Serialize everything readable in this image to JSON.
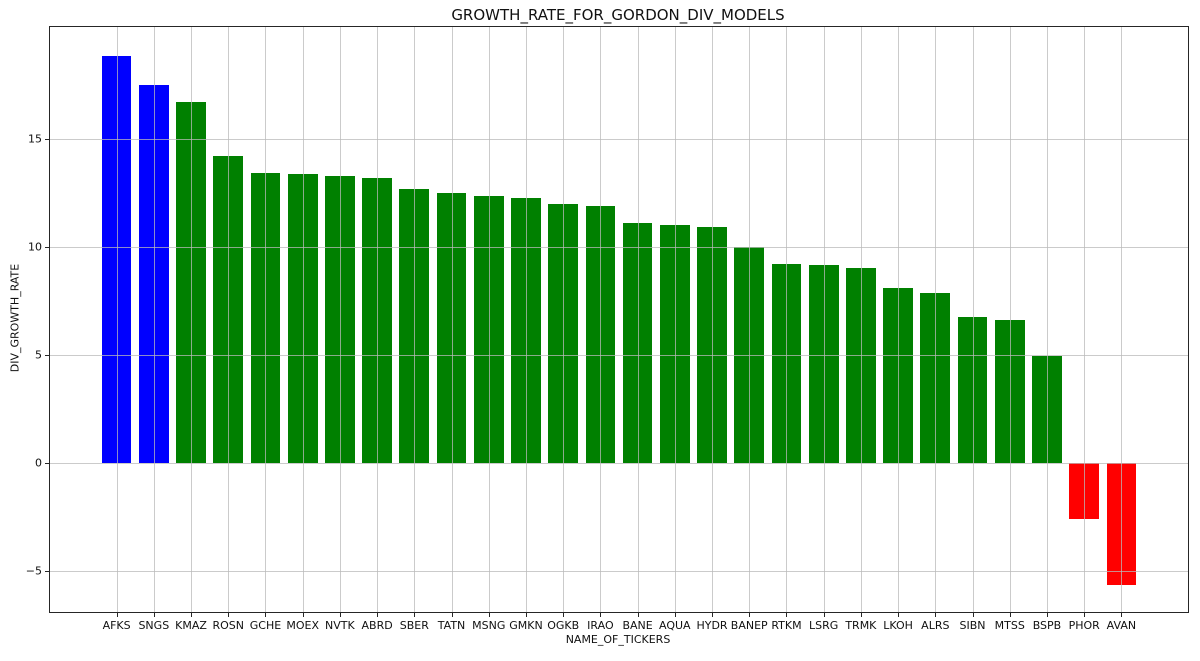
{
  "chart_data": {
    "type": "bar",
    "title": "GROWTH_RATE_FOR_GORDON_DIV_MODELS",
    "xlabel": "NAME_OF_TICKERS",
    "ylabel": "DIV_GROWTH_RATE",
    "categories": [
      "AFKS",
      "SNGS",
      "KMAZ",
      "ROSN",
      "GCHE",
      "MOEX",
      "NVTK",
      "ABRD",
      "SBER",
      "TATN",
      "MSNG",
      "GMKN",
      "OGKB",
      "IRAO",
      "BANE",
      "AQUA",
      "HYDR",
      "BANEP",
      "RTKM",
      "LSRG",
      "TRMK",
      "LKOH",
      "ALRS",
      "SIBN",
      "MTSS",
      "BSPB",
      "PHOR",
      "AVAN"
    ],
    "values": [
      18.85,
      17.5,
      16.7,
      14.2,
      13.45,
      13.4,
      13.3,
      13.2,
      12.7,
      12.5,
      12.35,
      12.25,
      12.0,
      11.9,
      11.1,
      11.0,
      10.95,
      10.0,
      9.2,
      9.15,
      9.05,
      8.1,
      7.85,
      6.75,
      6.6,
      4.95,
      -2.6,
      -5.65
    ],
    "bar_colors": [
      "#0000ff",
      "#0000ff",
      "#008000",
      "#008000",
      "#008000",
      "#008000",
      "#008000",
      "#008000",
      "#008000",
      "#008000",
      "#008000",
      "#008000",
      "#008000",
      "#008000",
      "#008000",
      "#008000",
      "#008000",
      "#008000",
      "#008000",
      "#008000",
      "#008000",
      "#008000",
      "#008000",
      "#008000",
      "#008000",
      "#008000",
      "#ff0000",
      "#ff0000"
    ],
    "yticks": [
      -5,
      0,
      5,
      10,
      15
    ],
    "ytick_labels": [
      "−5",
      "0",
      "5",
      "10",
      "15"
    ],
    "ylim": [
      -6.92,
      20.2
    ],
    "grid": true,
    "grid_over_bars": true,
    "legend_position": "none",
    "accent_colors": {
      "positive_leaders": "#0000ff",
      "positive": "#008000",
      "negative": "#ff0000",
      "grid": "#b9b9b9",
      "spine": "#262626"
    }
  }
}
